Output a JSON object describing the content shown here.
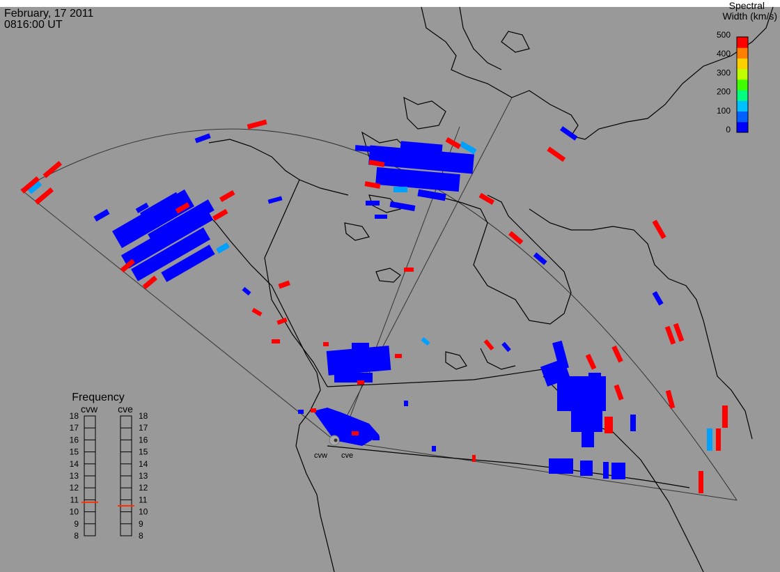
{
  "header": {
    "date": "February, 17 2011",
    "time": "0816:00 UT"
  },
  "colorbar": {
    "title_line1": "Spectral",
    "title_line2": "Width (km/s)",
    "ticks": [
      "500",
      "400",
      "300",
      "200",
      "100",
      "0"
    ],
    "colors": [
      "#0000ff",
      "#0060ff",
      "#00c0ff",
      "#00ff80",
      "#40ff00",
      "#c0ff00",
      "#ffd000",
      "#ff8000",
      "#ff0000"
    ]
  },
  "radars": {
    "left_label": "cvw",
    "right_label": "cve"
  },
  "frequency_panel": {
    "title": "Frequency",
    "col_left": "cvw",
    "col_right": "cve",
    "levels": [
      "18",
      "17",
      "16",
      "15",
      "14",
      "13",
      "12",
      "11",
      "10",
      "9",
      "8"
    ],
    "cvw_value": 10.8,
    "cve_value": 10.5,
    "marker_color": "#ff3000"
  },
  "colors": {
    "background": "#999999",
    "low_width": "#0000ff",
    "mid_width": "#00aaff",
    "high_width": "#ff0000",
    "coast": "#000000"
  }
}
